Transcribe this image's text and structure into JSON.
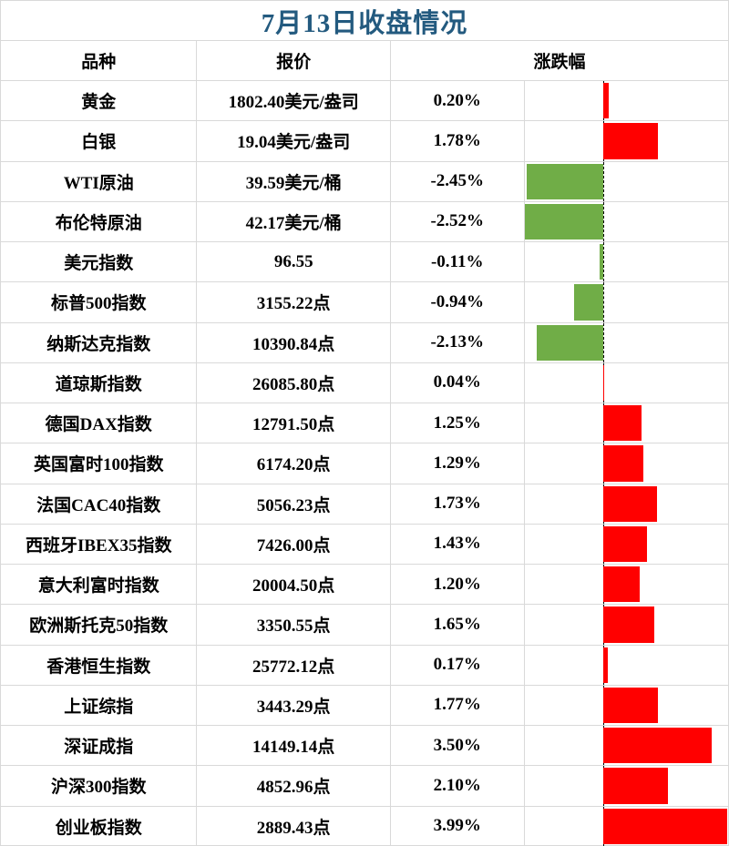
{
  "title": "7月13日收盘情况",
  "colors": {
    "title_text": "#235a7f",
    "up": "#ff0000",
    "down": "#70ad47",
    "grid": "#d9d9d9",
    "axis": "#000000"
  },
  "table": {
    "headers": [
      "品种",
      "报价",
      "涨跌幅"
    ],
    "rows": [
      {
        "name": "黄金",
        "quote": "1802.40美元/盎司",
        "change_label": "0.20%",
        "change_pct": 0.2
      },
      {
        "name": "白银",
        "quote": "19.04美元/盎司",
        "change_label": "1.78%",
        "change_pct": 1.78
      },
      {
        "name": "WTI原油",
        "quote": "39.59美元/桶",
        "change_label": "-2.45%",
        "change_pct": -2.45
      },
      {
        "name": "布伦特原油",
        "quote": "42.17美元/桶",
        "change_label": "-2.52%",
        "change_pct": -2.52
      },
      {
        "name": "美元指数",
        "quote": "96.55",
        "change_label": "-0.11%",
        "change_pct": -0.11
      },
      {
        "name": "标普500指数",
        "quote": "3155.22点",
        "change_label": "-0.94%",
        "change_pct": -0.94
      },
      {
        "name": "纳斯达克指数",
        "quote": "10390.84点",
        "change_label": "-2.13%",
        "change_pct": -2.13
      },
      {
        "name": "道琼斯指数",
        "quote": "26085.80点",
        "change_label": "0.04%",
        "change_pct": 0.04
      },
      {
        "name": "德国DAX指数",
        "quote": "12791.50点",
        "change_label": "1.25%",
        "change_pct": 1.25
      },
      {
        "name": "英国富时100指数",
        "quote": "6174.20点",
        "change_label": "1.29%",
        "change_pct": 1.29
      },
      {
        "name": "法国CAC40指数",
        "quote": "5056.23点",
        "change_label": "1.73%",
        "change_pct": 1.73
      },
      {
        "name": "西班牙IBEX35指数",
        "quote": "7426.00点",
        "change_label": "1.43%",
        "change_pct": 1.43
      },
      {
        "name": "意大利富时指数",
        "quote": "20004.50点",
        "change_label": "1.20%",
        "change_pct": 1.2
      },
      {
        "name": "欧洲斯托克50指数",
        "quote": "3350.55点",
        "change_label": "1.65%",
        "change_pct": 1.65
      },
      {
        "name": "香港恒生指数",
        "quote": "25772.12点",
        "change_label": "0.17%",
        "change_pct": 0.17
      },
      {
        "name": "上证综指",
        "quote": "3443.29点",
        "change_label": "1.77%",
        "change_pct": 1.77
      },
      {
        "name": "深证成指",
        "quote": "14149.14点",
        "change_label": "3.50%",
        "change_pct": 3.5
      },
      {
        "name": "沪深300指数",
        "quote": "4852.96点",
        "change_label": "2.10%",
        "change_pct": 2.1
      },
      {
        "name": "创业板指数",
        "quote": "2889.43点",
        "change_label": "3.99%",
        "change_pct": 3.99
      }
    ]
  },
  "chart_data": {
    "type": "bar",
    "orientation": "horizontal",
    "title": "7月13日收盘情况",
    "categories": [
      "黄金",
      "白银",
      "WTI原油",
      "布伦特原油",
      "美元指数",
      "标普500指数",
      "纳斯达克指数",
      "道琼斯指数",
      "德国DAX指数",
      "英国富时100指数",
      "法国CAC40指数",
      "西班牙IBEX35指数",
      "意大利富时指数",
      "欧洲斯托克50指数",
      "香港恒生指数",
      "上证综指",
      "深证成指",
      "沪深300指数",
      "创业板指数"
    ],
    "values": [
      0.2,
      1.78,
      -2.45,
      -2.52,
      -0.11,
      -0.94,
      -2.13,
      0.04,
      1.25,
      1.29,
      1.73,
      1.43,
      1.2,
      1.65,
      0.17,
      1.77,
      3.5,
      2.1,
      3.99
    ],
    "value_unit": "%",
    "quotes": [
      "1802.40美元/盎司",
      "19.04美元/盎司",
      "39.59美元/桶",
      "42.17美元/桶",
      "96.55",
      "3155.22点",
      "10390.84点",
      "26085.80点",
      "12791.50点",
      "6174.20点",
      "5056.23点",
      "7426.00点",
      "20004.50点",
      "3350.55点",
      "25772.12点",
      "3443.29点",
      "14149.14点",
      "4852.96点",
      "2889.43点"
    ],
    "positive_color": "#ff0000",
    "negative_color": "#70ad47",
    "baseline": 0,
    "xlim": [
      -2.55,
      4.05
    ],
    "grid": false,
    "legend": "none",
    "zero_axis_style": "dashed-black"
  }
}
